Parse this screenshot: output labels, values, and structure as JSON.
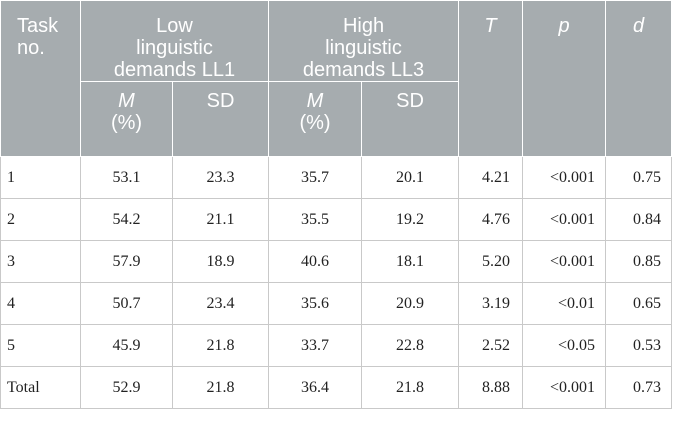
{
  "header": {
    "task_no_line1": "Task",
    "task_no_line2": "no.",
    "low_line1": "Low",
    "low_line2": "linguistic",
    "low_line3": "demands LL1",
    "high_line1": "High",
    "high_line2": "linguistic",
    "high_line3": "demands LL3",
    "t": "T",
    "p": "p",
    "d": "d",
    "m": "M",
    "m_unit": "(%)",
    "sd": "SD"
  },
  "rows": [
    {
      "task": "1",
      "low_m": "53.1",
      "low_sd": "23.3",
      "high_m": "35.7",
      "high_sd": "20.1",
      "t": "4.21",
      "p": "<0.001",
      "d": "0.75"
    },
    {
      "task": "2",
      "low_m": "54.2",
      "low_sd": "21.1",
      "high_m": "35.5",
      "high_sd": "19.2",
      "t": "4.76",
      "p": "<0.001",
      "d": "0.84"
    },
    {
      "task": "3",
      "low_m": "57.9",
      "low_sd": "18.9",
      "high_m": "40.6",
      "high_sd": "18.1",
      "t": "5.20",
      "p": "<0.001",
      "d": "0.85"
    },
    {
      "task": "4",
      "low_m": "50.7",
      "low_sd": "23.4",
      "high_m": "35.6",
      "high_sd": "20.9",
      "t": "3.19",
      "p": "<0.01",
      "d": "0.65"
    },
    {
      "task": "5",
      "low_m": "45.9",
      "low_sd": "21.8",
      "high_m": "33.7",
      "high_sd": "22.8",
      "t": "2.52",
      "p": "<0.05",
      "d": "0.53"
    },
    {
      "task": "Total",
      "low_m": "52.9",
      "low_sd": "21.8",
      "high_m": "36.4",
      "high_sd": "21.8",
      "t": "8.88",
      "p": "<0.001",
      "d": "0.73"
    }
  ]
}
